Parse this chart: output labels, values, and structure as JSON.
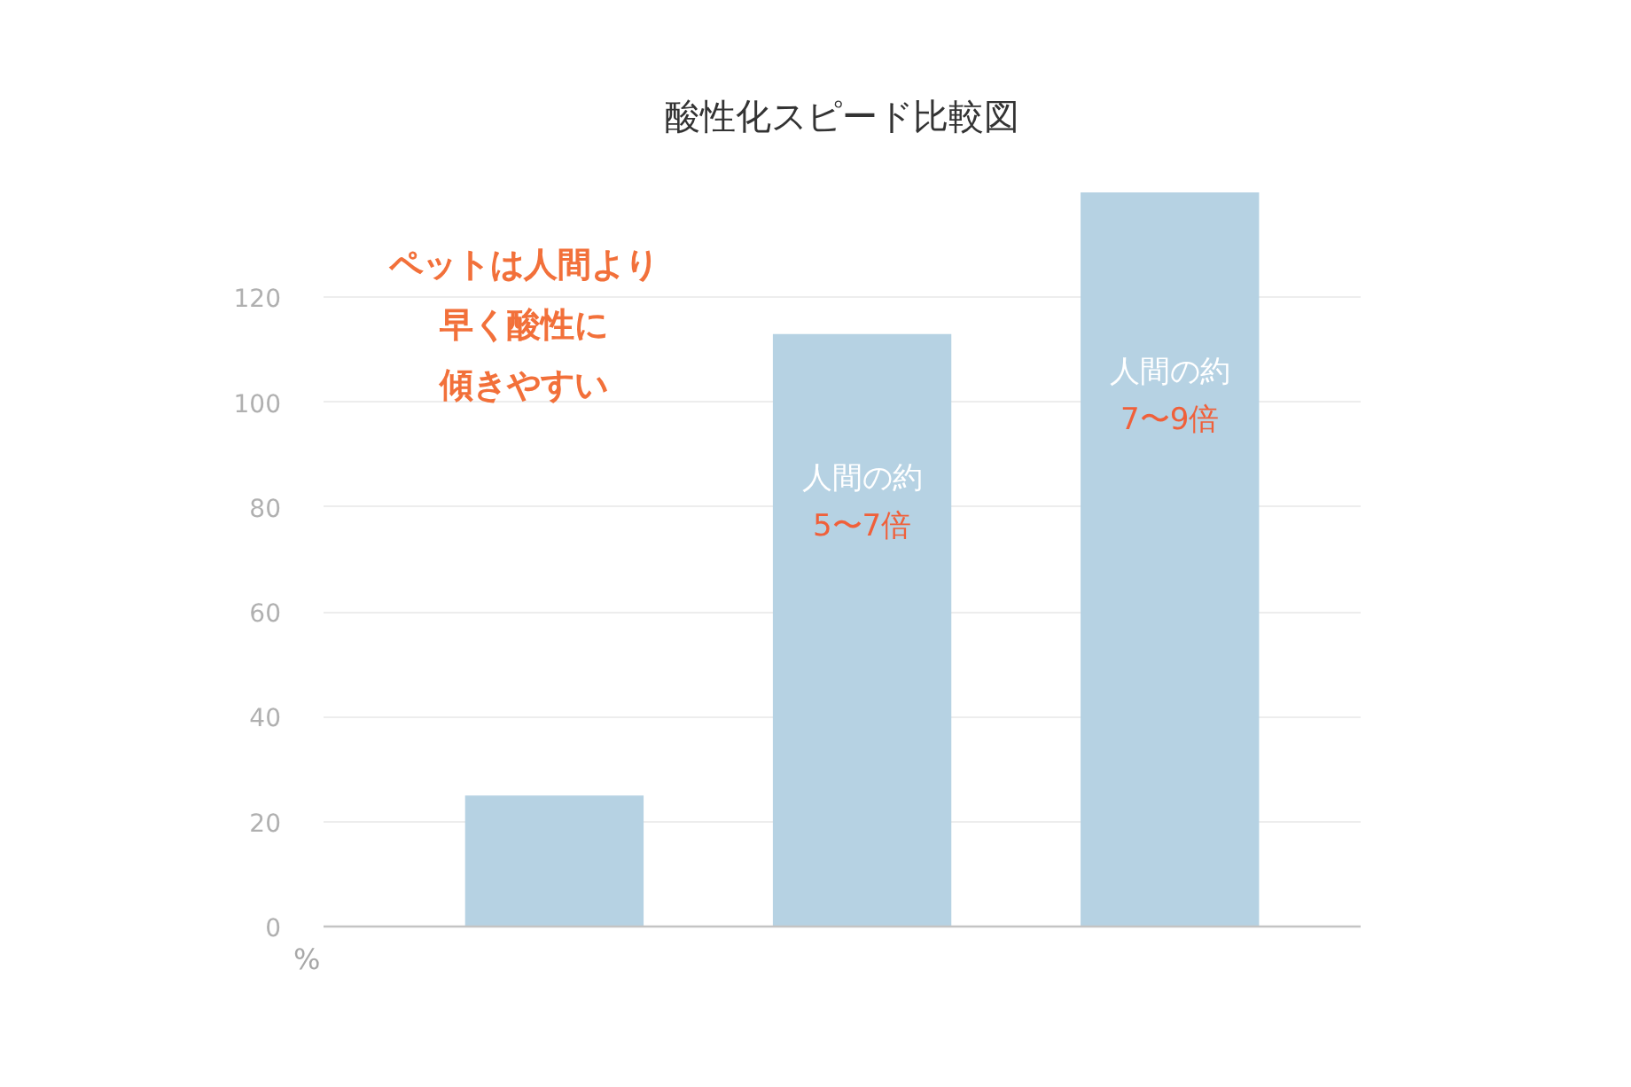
{
  "chart_data": {
    "type": "bar",
    "title": "酸性化スピード比較図",
    "ylabel": "%",
    "categories": [
      null,
      null,
      null
    ],
    "values": [
      25,
      113,
      140
    ],
    "color": "#b6d2e3",
    "ylim": [
      0,
      140
    ],
    "yticks": [
      0,
      20,
      40,
      60,
      80,
      100,
      120
    ],
    "grid": "y",
    "tick_labels": "y",
    "value_labels": [
      null,
      "人間の約\n5〜7倍",
      "人間の約\n7〜9倍"
    ],
    "annotations": [
      "ペットは人間より早く酸性に傾きやすい"
    ]
  }
}
